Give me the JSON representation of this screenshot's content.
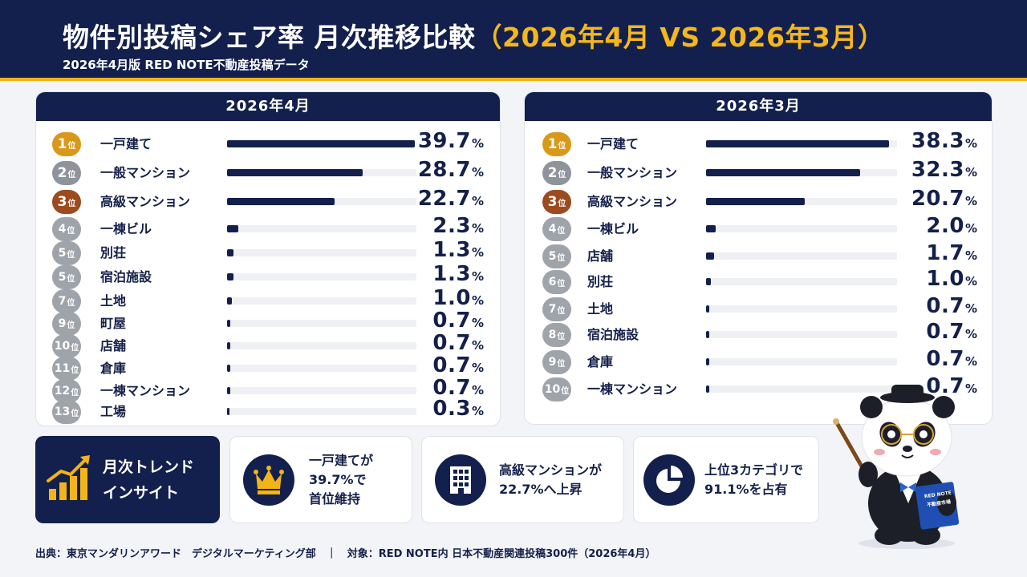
{
  "header": {
    "title_main": "物件別投稿シェア率 月次推移比較",
    "title_compare": "（2026年4月 VS 2026年3月）",
    "subtitle": "2026年4月版 RED NOTE不動産投稿データ"
  },
  "colors": {
    "navy": "#13204d",
    "gold": "#f2b418",
    "rank1": "#d8981a",
    "rank2": "#8f939b",
    "rank3": "#9c4a1e",
    "rank_other": "#9fa3aa"
  },
  "chart_data": [
    {
      "type": "bar",
      "title": "2026年4月",
      "rank_unit": "位",
      "percent_unit": "%",
      "xlim": [
        0,
        40
      ],
      "ranks": [
        1,
        2,
        3,
        4,
        5,
        5,
        7,
        9,
        10,
        11,
        12,
        13
      ],
      "categories": [
        "一戸建て",
        "一般マンション",
        "高級マンション",
        "一棟ビル",
        "別荘",
        "宿泊施設",
        "土地",
        "町屋",
        "店舗",
        "倉庫",
        "一棟マンション",
        "工場"
      ],
      "values": [
        39.7,
        28.7,
        22.7,
        2.3,
        1.3,
        1.3,
        1.0,
        0.7,
        0.7,
        0.7,
        0.7,
        0.3
      ],
      "value_labels": [
        "39.7",
        "28.7",
        "22.7",
        "2.3",
        "1.3",
        "1.3",
        "1.0",
        "0.7",
        "0.7",
        "0.7",
        "0.7",
        "0.3"
      ]
    },
    {
      "type": "bar",
      "title": "2026年3月",
      "rank_unit": "位",
      "percent_unit": "%",
      "xlim": [
        0,
        40
      ],
      "ranks": [
        1,
        2,
        3,
        4,
        5,
        6,
        7,
        8,
        9,
        10
      ],
      "categories": [
        "一戸建て",
        "一般マンション",
        "高級マンション",
        "一棟ビル",
        "店舗",
        "別荘",
        "土地",
        "宿泊施設",
        "倉庫",
        "一棟マンション"
      ],
      "values": [
        38.3,
        32.3,
        20.7,
        2.0,
        1.7,
        1.0,
        0.7,
        0.7,
        0.7,
        0.7
      ],
      "value_labels": [
        "38.3",
        "32.3",
        "20.7",
        "2.0",
        "1.7",
        "1.0",
        "0.7",
        "0.7",
        "0.7",
        "0.7"
      ]
    }
  ],
  "insights": {
    "trend_line1": "月次トレンド",
    "trend_line2": "インサイト",
    "cards": [
      {
        "icon": "crown-icon",
        "line1": "一戸建てが",
        "line2": "39.7%で",
        "line3": "首位維持"
      },
      {
        "icon": "building-icon",
        "line1": "高級マンションが",
        "line2": "22.7%へ上昇"
      },
      {
        "icon": "pie-chart-icon",
        "line1": "上位3カテゴリで",
        "line2": "91.1%を占有"
      }
    ]
  },
  "mascot": {
    "icon": "panda-mascot-icon",
    "book_line1": "RED NOTE",
    "book_line2": "不動産市場"
  },
  "footer": {
    "text": "出典：東京マンダリンアワード　デジタルマーケティング部　｜　対象：RED NOTE内 日本不動産関連投稿300件（2026年4月）"
  }
}
